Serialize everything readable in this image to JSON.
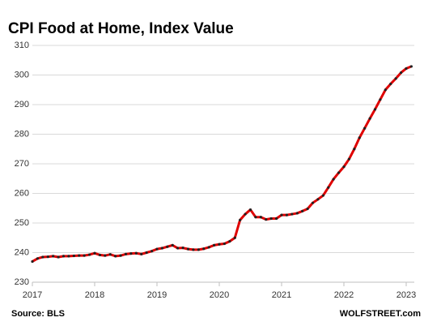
{
  "chart_data": {
    "type": "line",
    "title": "CPI Food at Home, Index Value",
    "source": "Source: BLS",
    "credit": "WOLFSTREET.com",
    "color": "#e00000",
    "marker_color": "#222222",
    "grid": true,
    "xlim": [
      2017,
      2023
    ],
    "xticks": [
      2017,
      2018,
      2019,
      2020,
      2021,
      2022,
      2023
    ],
    "ylim": [
      230,
      310
    ],
    "yticks": [
      230,
      240,
      250,
      260,
      270,
      280,
      290,
      300,
      310
    ],
    "x": [
      2017,
      2017.083,
      2017.167,
      2017.25,
      2017.333,
      2017.417,
      2017.5,
      2017.583,
      2017.667,
      2017.75,
      2017.833,
      2017.917,
      2018,
      2018.083,
      2018.167,
      2018.25,
      2018.333,
      2018.417,
      2018.5,
      2018.583,
      2018.667,
      2018.75,
      2018.833,
      2018.917,
      2019,
      2019.083,
      2019.167,
      2019.25,
      2019.333,
      2019.417,
      2019.5,
      2019.583,
      2019.667,
      2019.75,
      2019.833,
      2019.917,
      2020,
      2020.083,
      2020.167,
      2020.25,
      2020.333,
      2020.417,
      2020.5,
      2020.583,
      2020.667,
      2020.75,
      2020.833,
      2020.917,
      2021,
      2021.083,
      2021.167,
      2021.25,
      2021.333,
      2021.417,
      2021.5,
      2021.583,
      2021.667,
      2021.75,
      2021.833,
      2021.917,
      2022,
      2022.083,
      2022.167,
      2022.25,
      2022.333,
      2022.417,
      2022.5,
      2022.583,
      2022.667,
      2022.75,
      2022.833,
      2022.917,
      2023,
      2023.083
    ],
    "values": [
      237.0,
      238.0,
      238.5,
      238.6,
      238.8,
      238.5,
      238.8,
      238.8,
      238.9,
      239.0,
      239.0,
      239.3,
      239.8,
      239.2,
      239.0,
      239.4,
      238.8,
      239.0,
      239.5,
      239.7,
      239.8,
      239.5,
      240.0,
      240.5,
      241.2,
      241.5,
      242.0,
      242.5,
      241.5,
      241.6,
      241.2,
      241.0,
      241.0,
      241.3,
      241.8,
      242.5,
      242.8,
      243.0,
      243.8,
      245.0,
      251.0,
      253.0,
      254.5,
      252.0,
      252.0,
      251.2,
      251.5,
      251.5,
      252.7,
      252.7,
      253.0,
      253.3,
      254.0,
      254.8,
      256.8,
      258.0,
      259.3,
      262.0,
      264.8,
      267.0,
      269.0,
      271.6,
      275.0,
      278.8,
      282.0,
      285.3,
      288.4,
      291.7,
      295.0,
      297.0,
      298.8,
      300.8,
      302.2,
      302.9
    ]
  }
}
